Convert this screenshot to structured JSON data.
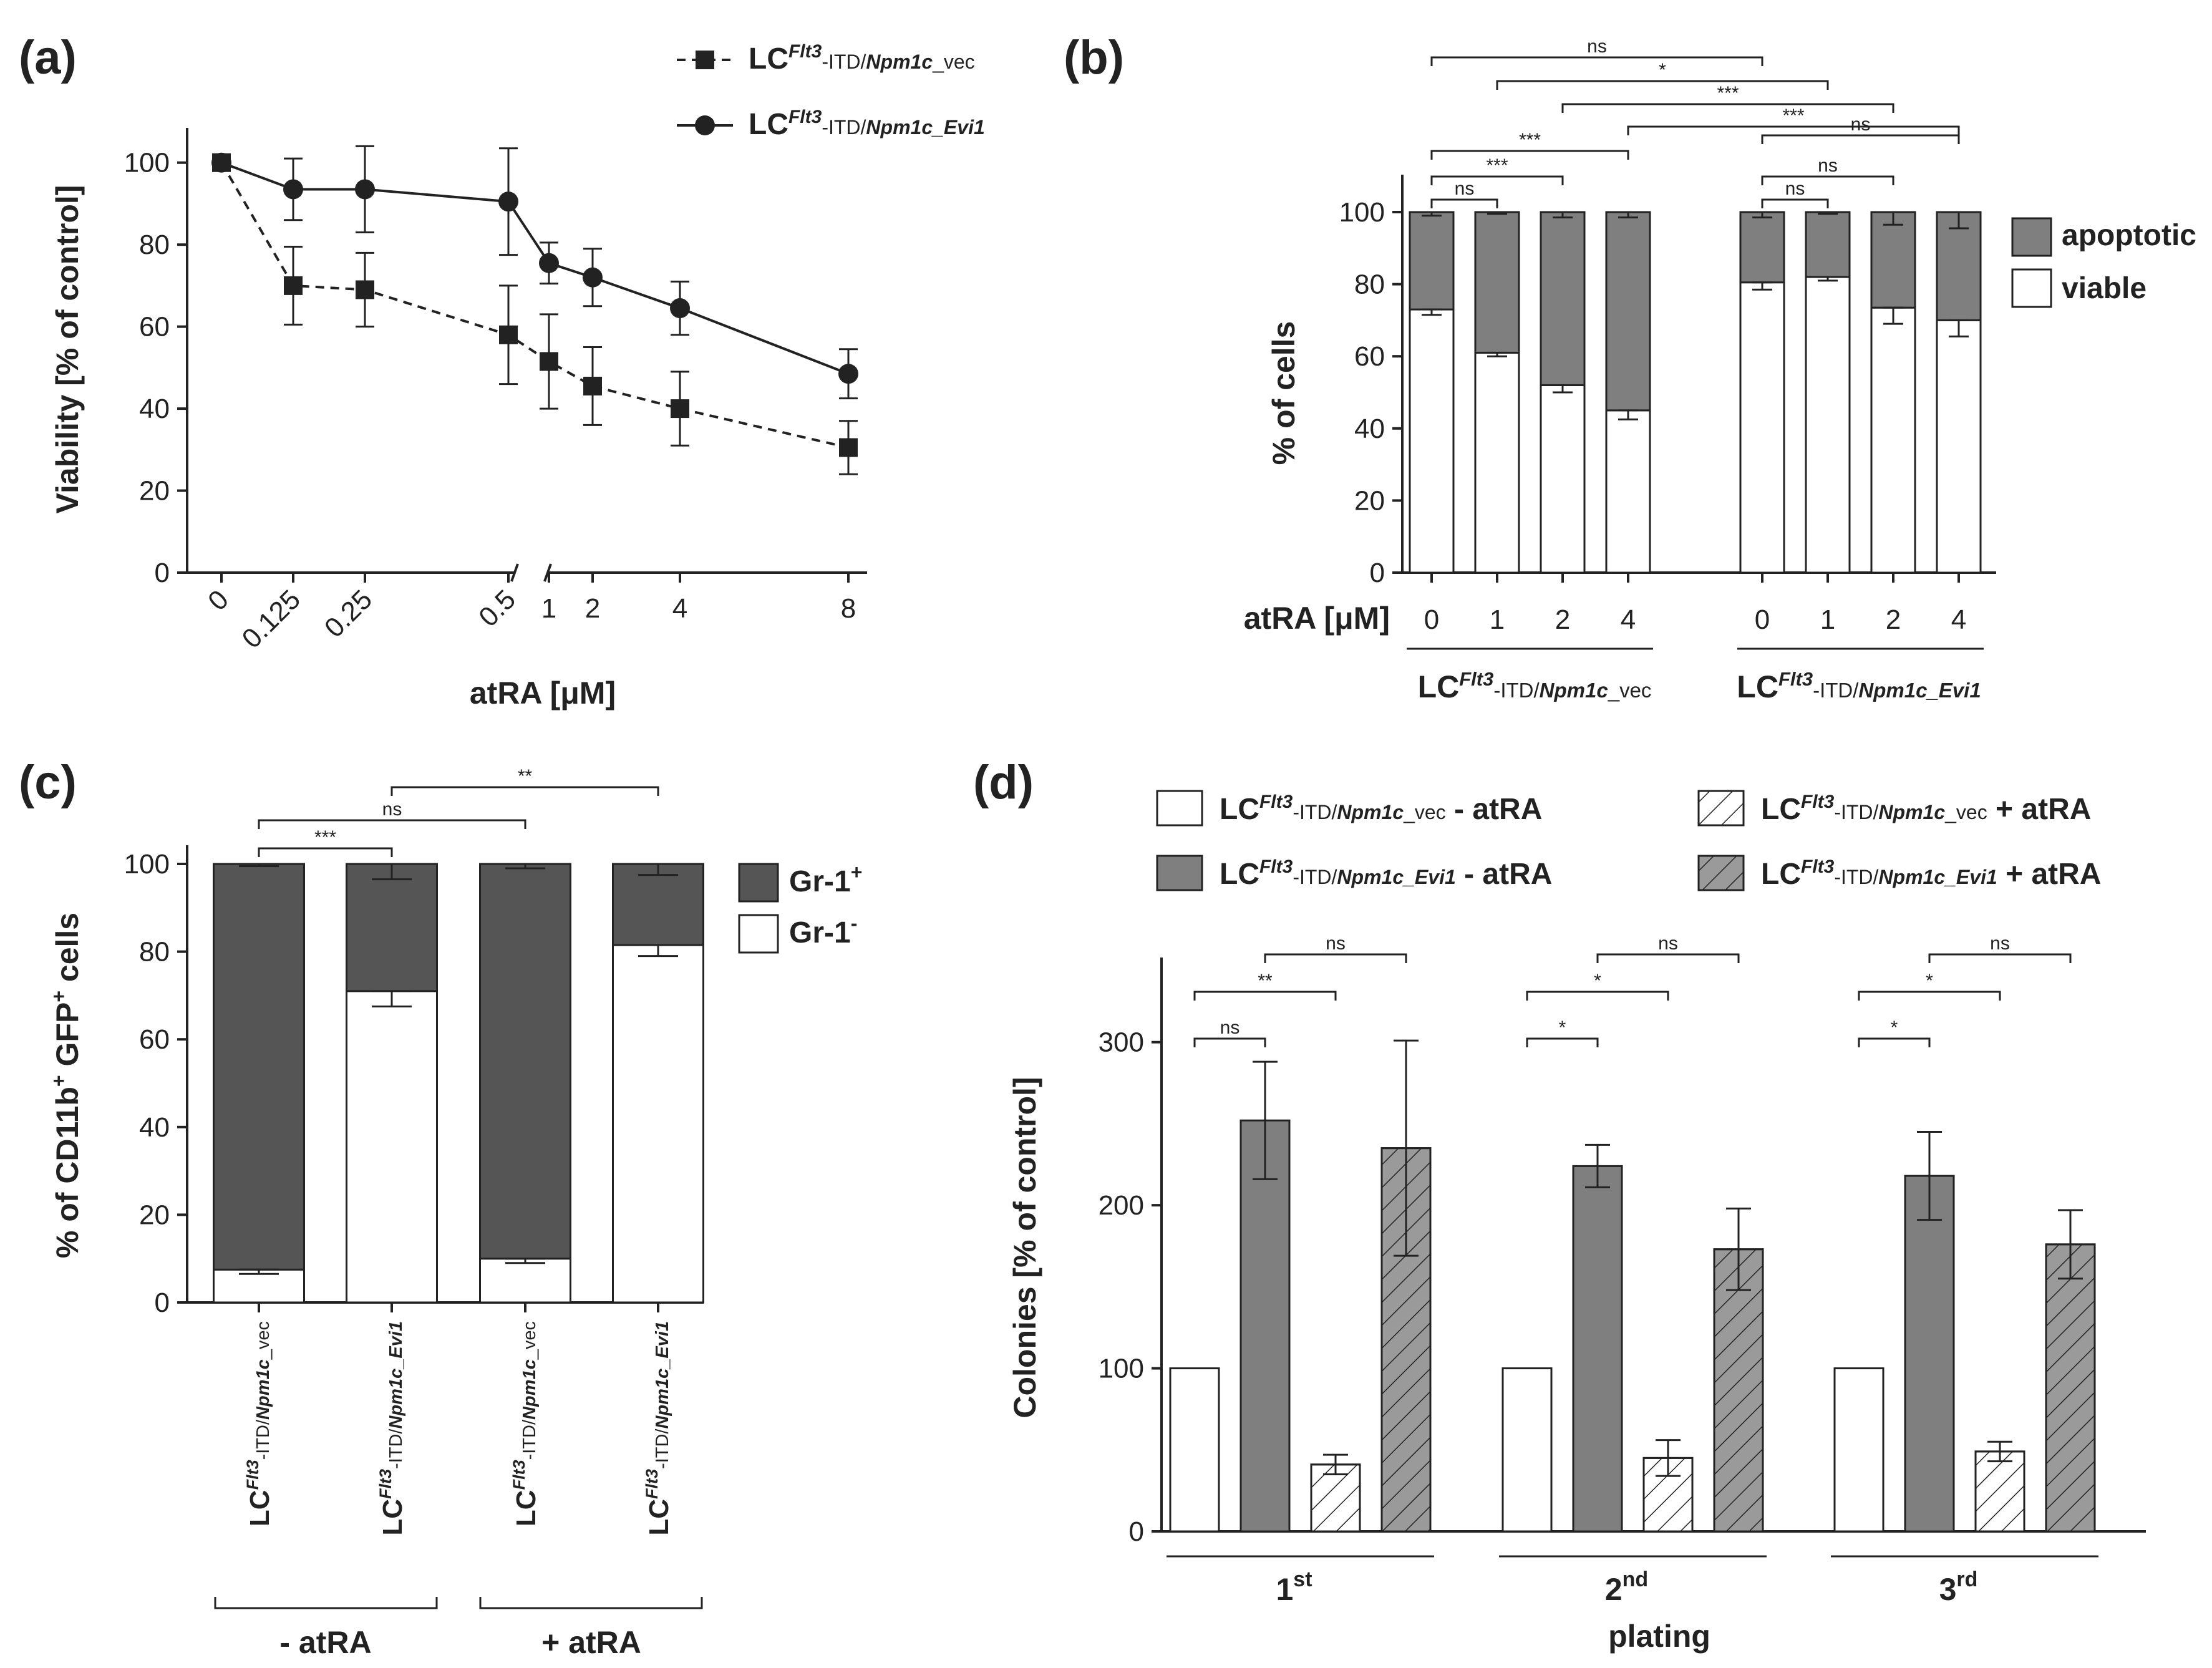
{
  "panels": {
    "a": "(a)",
    "b": "(b)",
    "c": "(c)",
    "d": "(d)"
  },
  "colors": {
    "dark": "#555555",
    "mid": "#7f7f7f",
    "hatch_gray": "#9a9a9a",
    "line": "#222222"
  },
  "chart_data": [
    {
      "id": "a",
      "type": "line",
      "title": "",
      "xlabel": "atRA [μM]",
      "ylabel": "Viability [% of control]",
      "ylim": [
        0,
        110
      ],
      "yticks": [
        "0",
        "20",
        "40",
        "60",
        "80",
        "100"
      ],
      "x_labels": [
        "0",
        "0.125",
        "0.25",
        "0.5",
        "1",
        "2",
        "4",
        "8"
      ],
      "legend_position": "top-right",
      "series": [
        {
          "name": "LCFlt3-ITD/Npm1c_vec",
          "legend": {
            "pre": "LC",
            "sup": "Flt3",
            "mid": "-ITD/",
            "it": "Npm1c",
            "post": "_vec"
          },
          "style": "dashed-square",
          "values": [
            100,
            70,
            69,
            58,
            51.5,
            45.5,
            40,
            30.5
          ],
          "errors": [
            0,
            9.5,
            9,
            12,
            11.5,
            9.5,
            9,
            6.5
          ]
        },
        {
          "name": "LCFlt3-ITD/Npm1c_Evi1",
          "legend": {
            "pre": "LC",
            "sup": "Flt3",
            "mid": "-ITD/",
            "it": "Npm1c_Evi1",
            "post": ""
          },
          "style": "solid-circle",
          "values": [
            100,
            93.5,
            93.5,
            90.5,
            75.5,
            72,
            64.5,
            48.5
          ],
          "errors": [
            0,
            7.5,
            10.5,
            13,
            5,
            7,
            6.5,
            6
          ]
        }
      ]
    },
    {
      "id": "b",
      "type": "bar",
      "stacked": true,
      "ylabel": "% of cells",
      "ylim": [
        0,
        100
      ],
      "yticks": [
        "0",
        "20",
        "40",
        "60",
        "80",
        "100"
      ],
      "row_label": "atRA [μM]",
      "categories": [
        "0",
        "1",
        "2",
        "4",
        "0",
        "1",
        "2",
        "4"
      ],
      "groups": [
        {
          "pre": "LC",
          "sup": "Flt3",
          "mid": "-ITD/",
          "it": "Npm1c",
          "post": "_vec"
        },
        {
          "pre": "LC",
          "sup": "Flt3",
          "mid": "-ITD/",
          "it": "Npm1c_Evi1",
          "post": ""
        }
      ],
      "series": [
        {
          "name": "viable",
          "values": [
            73,
            61,
            52,
            45,
            80.5,
            82,
            73.5,
            70
          ],
          "errors": [
            1.5,
            1,
            2,
            2.5,
            2,
            1,
            4.5,
            4.5
          ]
        },
        {
          "name": "apoptotic",
          "values": [
            27,
            39,
            48,
            55,
            19.5,
            18,
            26.5,
            30
          ],
          "errors": [
            1,
            0.5,
            1.5,
            1.5,
            1.5,
            0.5,
            3.5,
            4.5
          ]
        }
      ],
      "legend": [
        "apoptotic",
        "viable"
      ],
      "significance": [
        {
          "from": 0,
          "to": 4,
          "label": "ns"
        },
        {
          "from": 1,
          "to": 5,
          "label": "*"
        },
        {
          "from": 2,
          "to": 6,
          "label": "***"
        },
        {
          "from": 3,
          "to": 7,
          "label": "***"
        },
        {
          "from": 0,
          "to": 3,
          "label": "***"
        },
        {
          "from": 4,
          "to": 7,
          "label": "ns"
        },
        {
          "from": 0,
          "to": 2,
          "label": "***"
        },
        {
          "from": 4,
          "to": 6,
          "label": "ns"
        },
        {
          "from": 0,
          "to": 1,
          "label": "ns"
        },
        {
          "from": 4,
          "to": 5,
          "label": "ns"
        }
      ]
    },
    {
      "id": "c",
      "type": "bar",
      "stacked": true,
      "ylabel": "% of CD11b",
      "ylabel_sup": "+",
      "ylabel_mid": " GFP",
      "ylabel_sup2": "+",
      "ylabel_end": " cells",
      "ylim": [
        0,
        100
      ],
      "yticks": [
        "0",
        "20",
        "40",
        "60",
        "80",
        "100"
      ],
      "categories": [
        {
          "pre": "LC",
          "sup": "Flt3",
          "mid": "-ITD/",
          "it": "Npm1c",
          "post": "_vec"
        },
        {
          "pre": "LC",
          "sup": "Flt3",
          "mid": "-ITD/",
          "it": "Npm1c_Evi1",
          "post": ""
        },
        {
          "pre": "LC",
          "sup": "Flt3",
          "mid": "-ITD/",
          "it": "Npm1c",
          "post": "_vec"
        },
        {
          "pre": "LC",
          "sup": "Flt3",
          "mid": "-ITD/",
          "it": "Npm1c_Evi1",
          "post": ""
        }
      ],
      "group_labels": [
        "- atRA",
        "+ atRA"
      ],
      "series": [
        {
          "name": "Gr-1-",
          "values": [
            7.5,
            71,
            10,
            81.5
          ],
          "errors": [
            1,
            3.5,
            1,
            2.5
          ]
        },
        {
          "name": "Gr-1+",
          "values": [
            92.5,
            29,
            90,
            18.5
          ],
          "errors": [
            0.5,
            3.5,
            1,
            2.5
          ]
        }
      ],
      "legend": [
        {
          "base": "Gr-1",
          "sup": "+",
          "series": "Gr-1+"
        },
        {
          "base": "Gr-1",
          "sup": "-",
          "series": "Gr-1-"
        }
      ],
      "significance": [
        {
          "from": 0,
          "to": 1,
          "label": "***"
        },
        {
          "from": 0,
          "to": 2,
          "label": "ns"
        },
        {
          "from": 1,
          "to": 3,
          "label": "**"
        }
      ]
    },
    {
      "id": "d",
      "type": "bar",
      "ylabel": "Colonies [% of control]",
      "xlabel": "plating",
      "ylim": [
        0,
        350
      ],
      "yticks": [
        "0",
        "100",
        "200",
        "300"
      ],
      "categories": [
        {
          "base": "1",
          "sup": "st"
        },
        {
          "base": "2",
          "sup": "nd"
        },
        {
          "base": "3",
          "sup": "rd"
        }
      ],
      "series": [
        {
          "name": "LCFlt3-ITD/Npm1c_vec - atRA",
          "legend": {
            "pre": "LC",
            "sup": "Flt3",
            "mid": "-ITD/",
            "it": "Npm1c",
            "post": "_vec",
            "treat": " - atRA"
          },
          "fill": "white",
          "values": [
            100,
            100,
            100
          ],
          "errors": [
            0,
            0,
            0
          ]
        },
        {
          "name": "LCFlt3-ITD/Npm1c_Evi1 - atRA",
          "legend": {
            "pre": "LC",
            "sup": "Flt3",
            "mid": "-ITD/",
            "it": "Npm1c_Evi1",
            "post": "",
            "treat": " - atRA"
          },
          "fill": "gray",
          "values": [
            252,
            224,
            218
          ],
          "errors": [
            36,
            13,
            27
          ]
        },
        {
          "name": "LCFlt3-ITD/Npm1c_vec + atRA",
          "legend": {
            "pre": "LC",
            "sup": "Flt3",
            "mid": "-ITD/",
            "it": "Npm1c",
            "post": "_vec",
            "treat": " + atRA"
          },
          "fill": "hatch-white",
          "values": [
            41,
            45,
            49
          ],
          "errors": [
            6,
            11,
            6
          ]
        },
        {
          "name": "LCFlt3-ITD/Npm1c_Evi1 + atRA",
          "legend": {
            "pre": "LC",
            "sup": "Flt3",
            "mid": "-ITD/",
            "it": "Npm1c_Evi1",
            "post": "",
            "treat": " + atRA"
          },
          "fill": "hatch-gray",
          "values": [
            235,
            173,
            176
          ],
          "errors": [
            66,
            25,
            21
          ]
        }
      ],
      "significance": [
        [
          {
            "from": 1,
            "to": 3,
            "label": "ns"
          },
          {
            "from": 0,
            "to": 2,
            "label": "**"
          },
          {
            "from": 0,
            "to": 1,
            "label": "ns"
          }
        ],
        [
          {
            "from": 1,
            "to": 3,
            "label": "ns"
          },
          {
            "from": 0,
            "to": 2,
            "label": "*"
          },
          {
            "from": 0,
            "to": 1,
            "label": "*"
          }
        ],
        [
          {
            "from": 1,
            "to": 3,
            "label": "ns"
          },
          {
            "from": 0,
            "to": 2,
            "label": "*"
          },
          {
            "from": 0,
            "to": 1,
            "label": "*"
          }
        ]
      ]
    }
  ]
}
